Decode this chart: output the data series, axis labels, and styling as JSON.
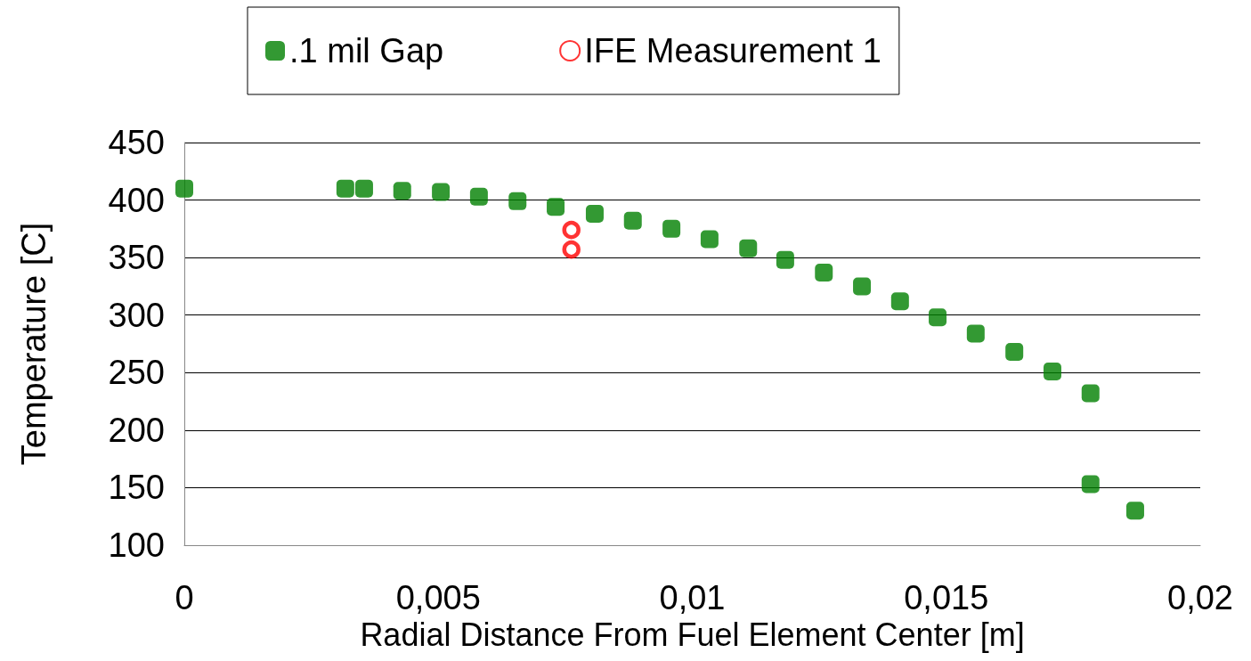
{
  "chart_data": {
    "type": "scatter",
    "xlabel": "Radial Distance From Fuel Element Center [m]",
    "ylabel": "Temperature [C]",
    "xlim": [
      0,
      0.02
    ],
    "xticks": [
      {
        "value": 0,
        "label": "0"
      },
      {
        "value": 0.005,
        "label": "0,005"
      },
      {
        "value": 0.01,
        "label": "0,01"
      },
      {
        "value": 0.015,
        "label": "0,015"
      },
      {
        "value": 0.02,
        "label": "0,02"
      }
    ],
    "ylim": [
      100,
      450
    ],
    "yticks": [
      100,
      150,
      200,
      250,
      300,
      350,
      400,
      450
    ],
    "grid": "y",
    "legend": "top",
    "marker": "square",
    "series": [
      {
        "name": ".1 mil Gap",
        "color": "#008000",
        "x": [
          0,
          0.00317,
          0.00354,
          0.00429,
          0.00505,
          0.0058,
          0.00656,
          0.00731,
          0.00808,
          0.00883,
          0.00959,
          0.01034,
          0.0111,
          0.01183,
          0.01259,
          0.01334,
          0.01409,
          0.01483,
          0.01558,
          0.01634,
          0.01709,
          0.01784,
          0.01784,
          0.01872
        ],
        "values": [
          410,
          410,
          410,
          408,
          407,
          403,
          399,
          394,
          388,
          382,
          375,
          366,
          358,
          348,
          337,
          325,
          312,
          298,
          284,
          268,
          251,
          232,
          153,
          130
        ]
      },
      {
        "name": "IFE Measurement 1",
        "color": "#ff0000",
        "marker": "circle",
        "x": [
          0.00762,
          0.00762
        ],
        "values": [
          374,
          357
        ]
      }
    ]
  }
}
